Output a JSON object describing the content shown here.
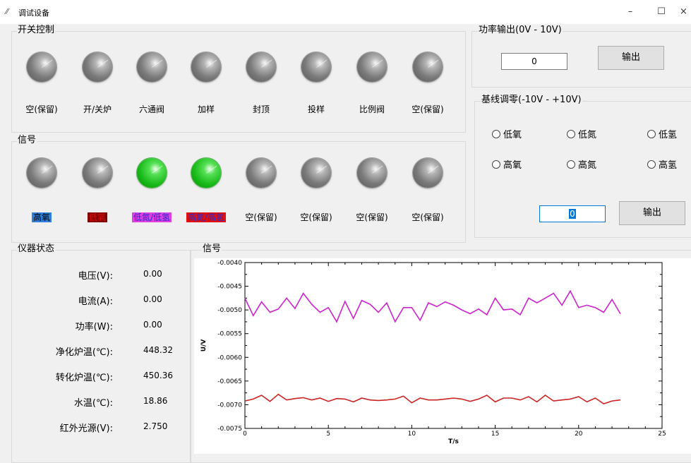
{
  "window": {
    "title": "调试设备",
    "icon": "app-icon",
    "min_glyph": "–",
    "max_glyph": "☐",
    "close_glyph": "×"
  },
  "switch_panel": {
    "title": "开关控制",
    "items": [
      {
        "label": "空(保留)",
        "on": false
      },
      {
        "label": "开/关炉",
        "on": false
      },
      {
        "label": "六通阀",
        "on": false
      },
      {
        "label": "加样",
        "on": false
      },
      {
        "label": "封顶",
        "on": false
      },
      {
        "label": "投样",
        "on": false
      },
      {
        "label": "比例阀",
        "on": false
      },
      {
        "label": "空(保留)",
        "on": false
      }
    ]
  },
  "signal_panel": {
    "title": "信号",
    "items": [
      {
        "label": "高氧",
        "on": false,
        "bg": "#2f7fdc",
        "fg": "#000000"
      },
      {
        "label": "低氧",
        "on": false,
        "bg": "#800000",
        "fg": "#e01010"
      },
      {
        "label": "低氮/低氢",
        "on": true,
        "bg": "#e040e0",
        "fg": "#2a2ad0"
      },
      {
        "label": "高氮/高氢",
        "on": true,
        "bg": "#e01010",
        "fg": "#2a2ad0"
      },
      {
        "label": "空(保留)",
        "on": false,
        "bg": "",
        "fg": "#000000"
      },
      {
        "label": "空(保留)",
        "on": false,
        "bg": "",
        "fg": "#000000"
      },
      {
        "label": "空(保留)",
        "on": false,
        "bg": "",
        "fg": "#000000"
      },
      {
        "label": "空(保留)",
        "on": false,
        "bg": "",
        "fg": "#000000"
      }
    ]
  },
  "power_output": {
    "title": "功率输出(0V - 10V)",
    "value": "0",
    "button": "输出"
  },
  "baseline": {
    "title": "基线调零(-10V - +10V)",
    "radios": [
      "低氧",
      "低氮",
      "低氢",
      "高氧",
      "高氮",
      "高氢"
    ],
    "value": "0",
    "button": "输出"
  },
  "status": {
    "title": "仪器状态",
    "rows": [
      {
        "label": "电压(V):",
        "value": "0.00"
      },
      {
        "label": "电流(A):",
        "value": "0.00"
      },
      {
        "label": "功率(W):",
        "value": "0.00"
      },
      {
        "label": "净化炉温(℃):",
        "value": "448.32"
      },
      {
        "label": "转化炉温(℃):",
        "value": "450.36"
      },
      {
        "label": "水温(℃):",
        "value": "18.86"
      },
      {
        "label": "红外光源(V):",
        "value": "2.750"
      }
    ]
  },
  "chart_panel": {
    "title": "信号"
  },
  "chart_data": {
    "type": "line",
    "xlabel": "T/s",
    "ylabel": "U/V",
    "xlim": [
      0,
      25
    ],
    "ylim": [
      -0.0075,
      -0.004
    ],
    "xticks": [
      0,
      5,
      10,
      15,
      20,
      25
    ],
    "yticks": [
      -0.004,
      -0.0045,
      -0.005,
      -0.0055,
      -0.006,
      -0.0065,
      -0.007,
      -0.0075
    ],
    "ytick_labels": [
      "-0.0040",
      "-0.0045",
      "-0.0050",
      "-0.0055",
      "-0.0060",
      "-0.0065",
      "-0.0070",
      "-0.0075"
    ],
    "xtick_labels": [
      "0",
      "5",
      "10",
      "15",
      "20",
      "25"
    ],
    "series": [
      {
        "color": "#cc22cc",
        "x": [
          0,
          0.5,
          1,
          1.5,
          2,
          2.5,
          3,
          3.5,
          4,
          4.5,
          5,
          5.5,
          6,
          6.5,
          7,
          7.5,
          8,
          8.5,
          9,
          9.5,
          10,
          10.5,
          11,
          11.5,
          12,
          12.5,
          13,
          13.5,
          14,
          14.5,
          15,
          15.5,
          16,
          16.5,
          17,
          17.5,
          18,
          18.5,
          19,
          19.5,
          20,
          20.5,
          21,
          21.5,
          22,
          22.5
        ],
        "y": [
          -0.00475,
          -0.00512,
          -0.00483,
          -0.00505,
          -0.00498,
          -0.00475,
          -0.00497,
          -0.00465,
          -0.00488,
          -0.00505,
          -0.00495,
          -0.00525,
          -0.00482,
          -0.00518,
          -0.0048,
          -0.00488,
          -0.00505,
          -0.00485,
          -0.00525,
          -0.00495,
          -0.00495,
          -0.00522,
          -0.00485,
          -0.00493,
          -0.00483,
          -0.0049,
          -0.005,
          -0.00508,
          -0.00498,
          -0.0051,
          -0.00475,
          -0.005,
          -0.00498,
          -0.0051,
          -0.00475,
          -0.00485,
          -0.00475,
          -0.00465,
          -0.0049,
          -0.0046,
          -0.00495,
          -0.0049,
          -0.00495,
          -0.00505,
          -0.00478,
          -0.00508
        ]
      },
      {
        "color": "#cc2222",
        "x": [
          0,
          0.5,
          1,
          1.5,
          2,
          2.5,
          3,
          3.5,
          4,
          4.5,
          5,
          5.5,
          6,
          6.5,
          7,
          7.5,
          8,
          8.5,
          9,
          9.5,
          10,
          10.5,
          11,
          11.5,
          12,
          12.5,
          13,
          13.5,
          14,
          14.5,
          15,
          15.5,
          16,
          16.5,
          17,
          17.5,
          18,
          18.5,
          19,
          19.5,
          20,
          20.5,
          21,
          21.5,
          22,
          22.5
        ],
        "y": [
          -0.00692,
          -0.00688,
          -0.0068,
          -0.00693,
          -0.00678,
          -0.0069,
          -0.00687,
          -0.00685,
          -0.0069,
          -0.00686,
          -0.00693,
          -0.00687,
          -0.00688,
          -0.00694,
          -0.00686,
          -0.0069,
          -0.00691,
          -0.0069,
          -0.00688,
          -0.00682,
          -0.00696,
          -0.00686,
          -0.0069,
          -0.0069,
          -0.00688,
          -0.00686,
          -0.00688,
          -0.00693,
          -0.00688,
          -0.0068,
          -0.00694,
          -0.00686,
          -0.00686,
          -0.0069,
          -0.00683,
          -0.00694,
          -0.0068,
          -0.00692,
          -0.0069,
          -0.00688,
          -0.00683,
          -0.00694,
          -0.00686,
          -0.00698,
          -0.00692,
          -0.0069
        ]
      }
    ]
  }
}
